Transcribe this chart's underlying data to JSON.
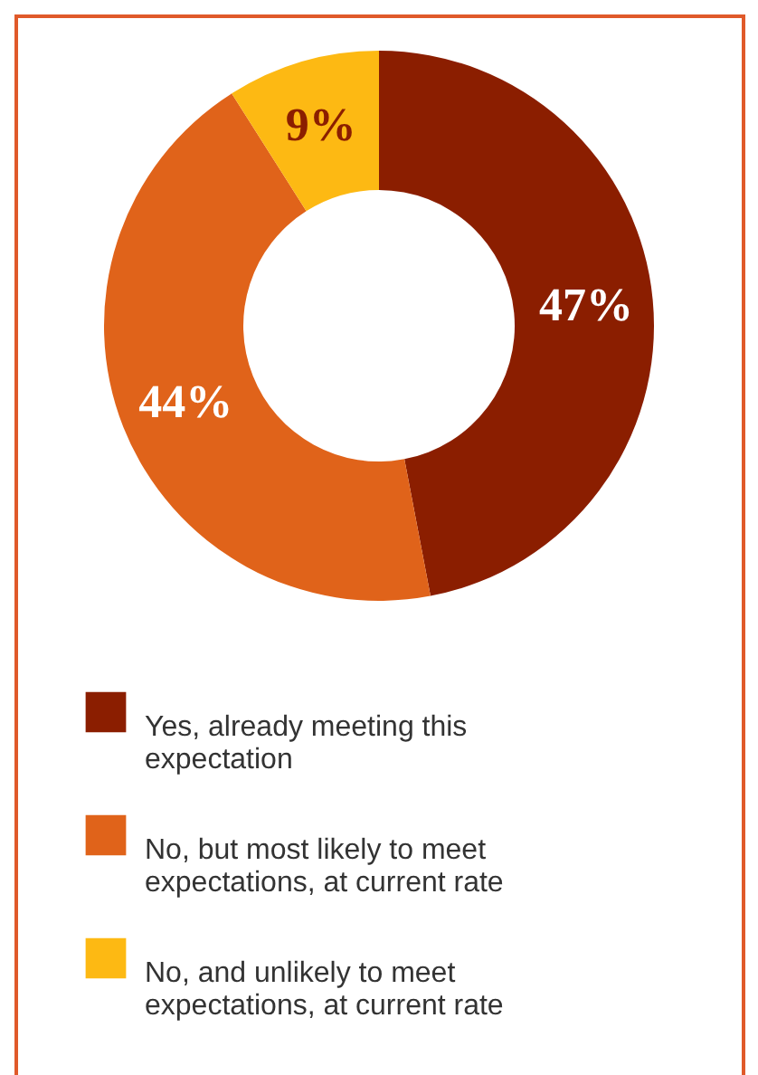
{
  "chart_data": {
    "type": "donut",
    "categories": [
      "Yes, already meeting this expectation",
      "No, but most likely to meet expectations, at current rate",
      "No, and unlikely to meet expectations, at current rate"
    ],
    "values": [
      47,
      44,
      9
    ],
    "colors": [
      "#8b1e00",
      "#e0631a",
      "#fdb913"
    ],
    "value_labels": [
      "47%",
      "44%",
      "9%"
    ],
    "legend": "bottom"
  }
}
